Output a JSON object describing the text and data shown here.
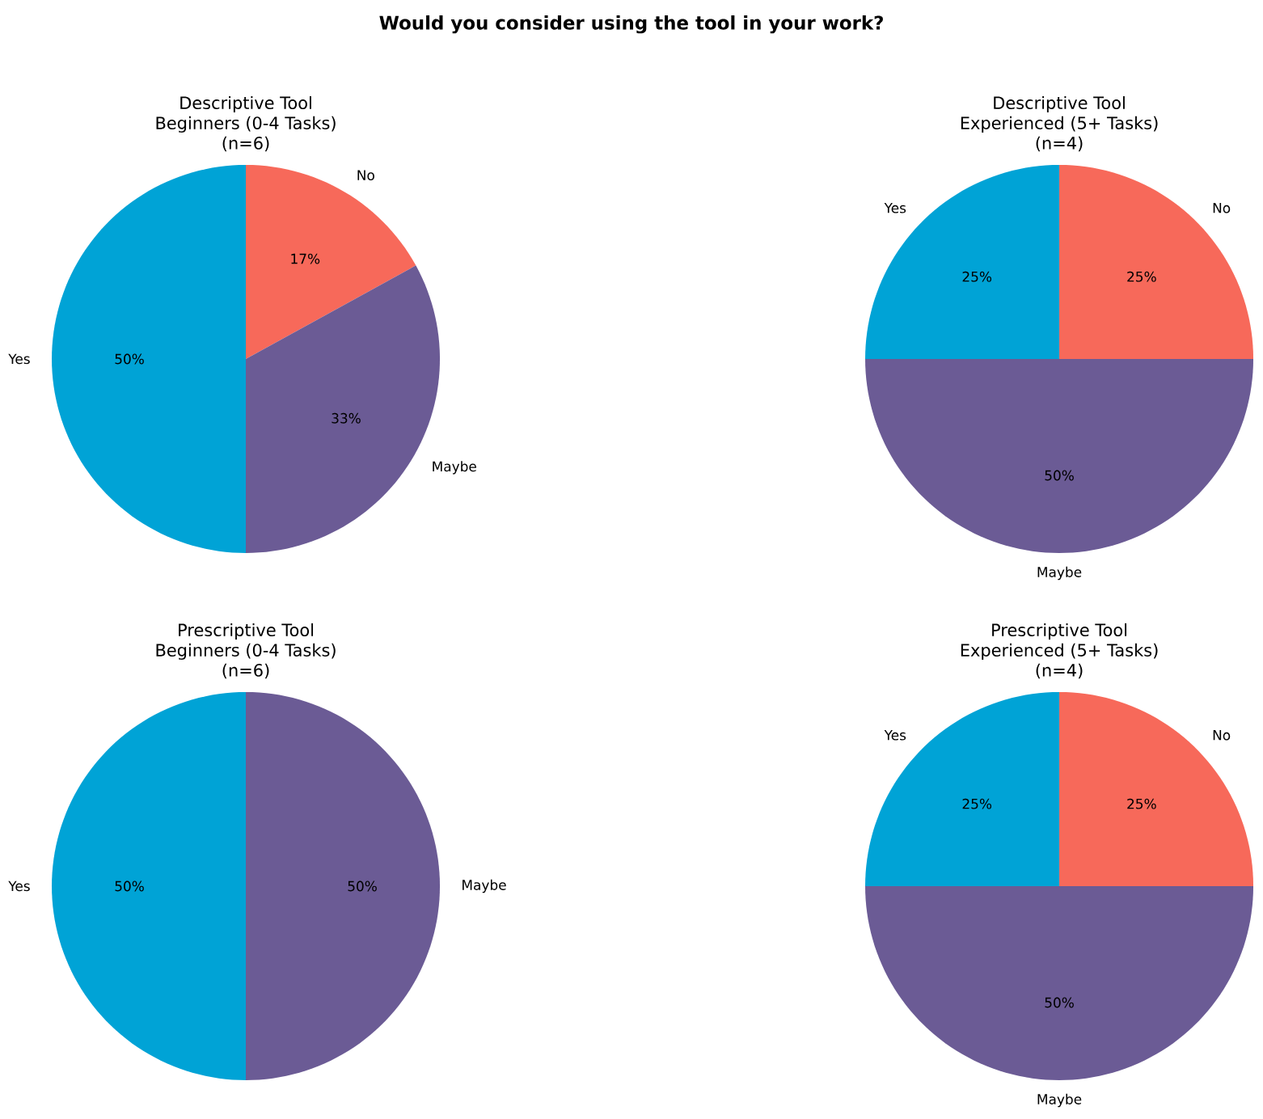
{
  "chart_data": [
    {
      "type": "other",
      "title": "Would you consider using the tool in your work?"
    },
    {
      "type": "pie",
      "title": "Descriptive Tool",
      "subtitle": "Beginners (0-4 Tasks)",
      "annotations": [
        "(n=6)"
      ],
      "categories": [
        "No",
        "Maybe",
        "Yes"
      ],
      "values": [
        17,
        33,
        50
      ],
      "value_labels": [
        "17%",
        "33%",
        "50%"
      ],
      "colors": [
        "#f7695a",
        "#6b5b95",
        "#00a3d6"
      ]
    },
    {
      "type": "pie",
      "title": "Descriptive Tool",
      "subtitle": "Experienced (5+ Tasks)",
      "annotations": [
        "(n=4)"
      ],
      "categories": [
        "No",
        "Maybe",
        "Yes"
      ],
      "values": [
        25,
        50,
        25
      ],
      "value_labels": [
        "25%",
        "50%",
        "25%"
      ],
      "colors": [
        "#f7695a",
        "#6b5b95",
        "#00a3d6"
      ]
    },
    {
      "type": "pie",
      "title": "Prescriptive Tool",
      "subtitle": "Beginners (0-4 Tasks)",
      "annotations": [
        "(n=6)"
      ],
      "categories": [
        "Maybe",
        "Yes"
      ],
      "values": [
        50,
        50
      ],
      "value_labels": [
        "50%",
        "50%"
      ],
      "colors": [
        "#6b5b95",
        "#00a3d6"
      ]
    },
    {
      "type": "pie",
      "title": "Prescriptive Tool",
      "subtitle": "Experienced (5+ Tasks)",
      "annotations": [
        "(n=4)"
      ],
      "categories": [
        "No",
        "Maybe",
        "Yes"
      ],
      "values": [
        25,
        50,
        25
      ],
      "value_labels": [
        "25%",
        "50%",
        "25%"
      ],
      "colors": [
        "#f7695a",
        "#6b5b95",
        "#00a3d6"
      ]
    }
  ]
}
